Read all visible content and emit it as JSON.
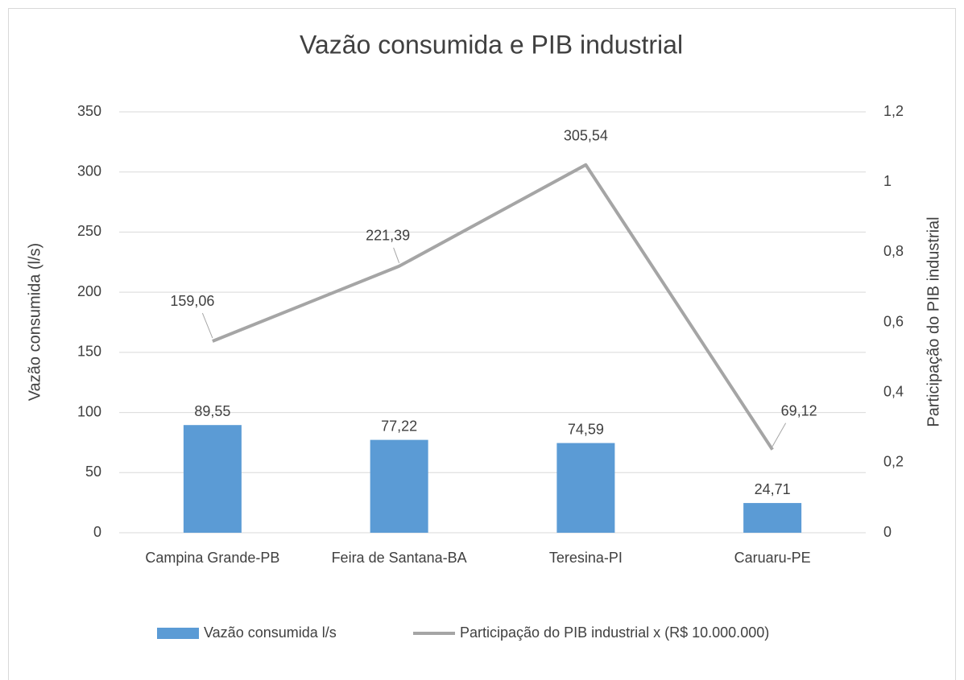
{
  "chart_data": {
    "type": "bar",
    "title": "Vazão consumida e PIB industrial",
    "y_label": "Vazão consumida (l/s)",
    "y2_label": "Participação do PIB industrial",
    "categories": [
      "Campina Grande-PB",
      "Feira de Santana-BA",
      "Teresina-PI",
      "Caruaru-PE"
    ],
    "series": [
      {
        "name": "Vazão consumida l/s",
        "type": "bar",
        "color": "#5b9bd5",
        "values": [
          89.55,
          77.22,
          74.59,
          24.71
        ],
        "value_labels": [
          "89,55",
          "77,22",
          "74,59",
          "24,71"
        ]
      },
      {
        "name": "Participação do PIB industrial x (R$ 10.000.000)",
        "type": "line",
        "axis": "y2",
        "color": "#a5a5a5",
        "values": [
          0.546,
          0.76,
          1.049,
          0.237
        ],
        "value_labels": [
          "159,06",
          "221,39",
          "305,54",
          "69,12"
        ]
      }
    ],
    "ylim": [
      0,
      350
    ],
    "yticks": [
      0,
      50,
      100,
      150,
      200,
      250,
      300,
      350
    ],
    "y2lim": [
      0,
      1.2
    ],
    "y2ticks": [
      0,
      {
        "value": 0.2,
        "label": "0,2"
      },
      {
        "value": 0.4,
        "label": "0,4"
      },
      {
        "value": 0.6,
        "label": "0,6"
      },
      {
        "value": 0.8,
        "label": "0,8"
      },
      1,
      {
        "value": 1.2,
        "label": "1,2"
      }
    ],
    "grid": true,
    "legend": "bottom"
  }
}
